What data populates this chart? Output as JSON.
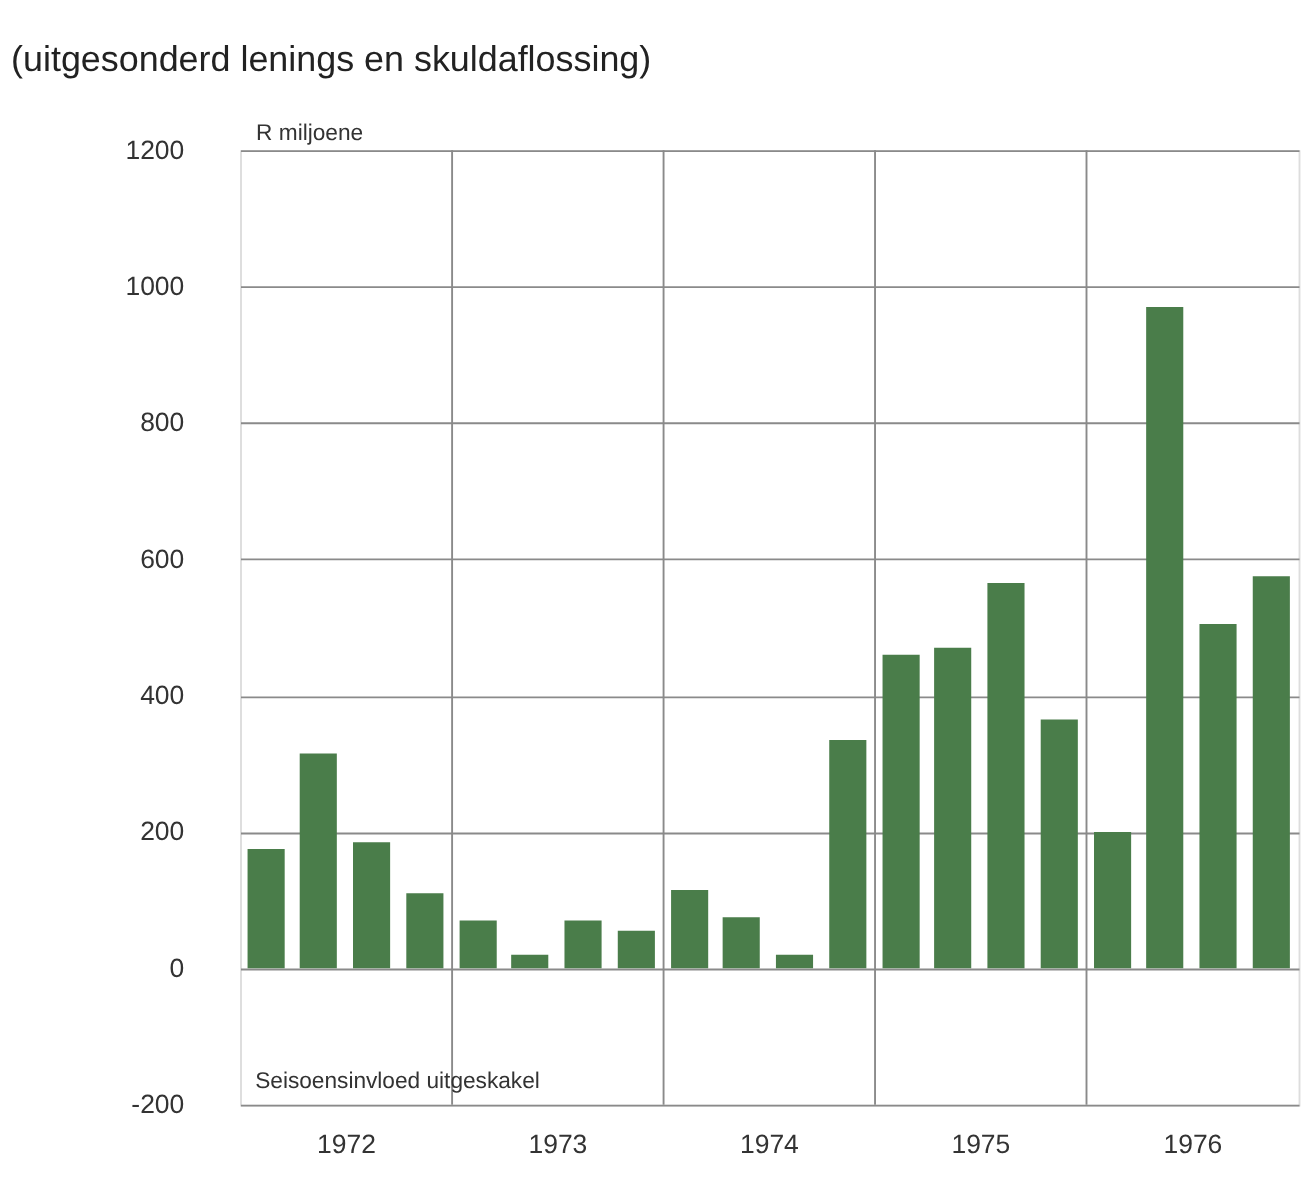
{
  "chart_data": {
    "type": "bar",
    "title": "(uitgesonderd lenings en skuldaflossing)",
    "ylabel": "R miljoene",
    "annotations": [
      "Seisoensinvloed uitgeskakel"
    ],
    "x": [
      "1972-02-15",
      "1972-05-15",
      "1972-08-15",
      "1972-11-15",
      "1973-02-15",
      "1973-05-15",
      "1973-08-15",
      "1973-11-15",
      "1974-02-15",
      "1974-05-15",
      "1974-08-15",
      "1974-11-15",
      "1975-02-15",
      "1975-05-15",
      "1975-08-15",
      "1975-11-15",
      "1976-02-15",
      "1976-05-15",
      "1976-08-15",
      "1976-11-15"
    ],
    "values": [
      175,
      315,
      185,
      110,
      70,
      20,
      70,
      55,
      115,
      75,
      20,
      335,
      460,
      470,
      565,
      365,
      200,
      970,
      505,
      575
    ],
    "color": "#4a7d4a",
    "xlim": [
      "1972-01-01",
      "1977-01-01"
    ],
    "xticks": [
      {
        "value": "1972-07-01",
        "label": "1972"
      },
      {
        "value": "1973-07-01",
        "label": "1973"
      },
      {
        "value": "1974-07-01",
        "label": "1974"
      },
      {
        "value": "1975-07-01",
        "label": "1975"
      },
      {
        "value": "1976-07-01",
        "label": "1976"
      }
    ],
    "ylim": [
      -200,
      1200
    ],
    "yticks": [
      -200,
      0,
      200,
      400,
      600,
      800,
      1000,
      1200
    ],
    "grid": "y",
    "ref_lines": [
      {
        "axis": "x",
        "value": "1973-01-01"
      },
      {
        "axis": "x",
        "value": "1974-01-01"
      },
      {
        "axis": "x",
        "value": "1975-01-01"
      },
      {
        "axis": "x",
        "value": "1976-01-01"
      }
    ]
  }
}
